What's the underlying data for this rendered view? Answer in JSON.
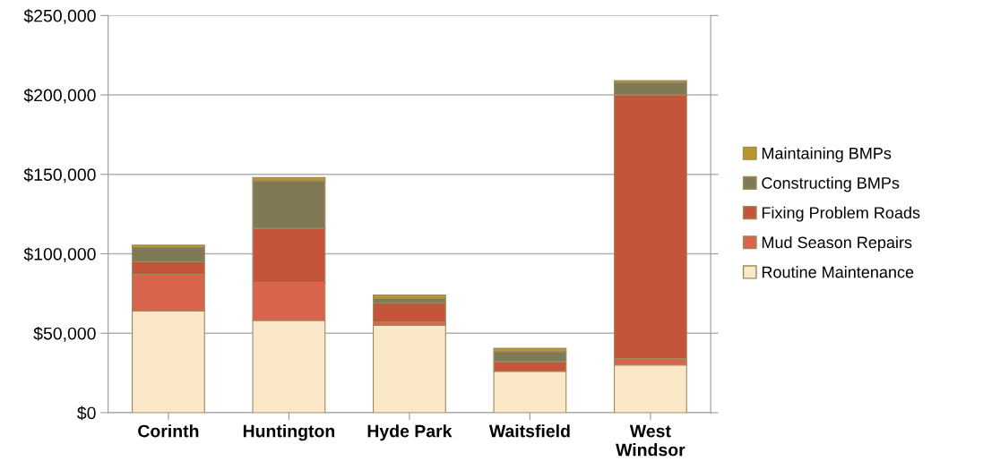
{
  "chart_data": {
    "type": "bar",
    "stacked": true,
    "categories": [
      "Corinth",
      "Huntington",
      "Hyde Park",
      "Waitsfield",
      "West\nWindsor"
    ],
    "series": [
      {
        "name": "Routine Maintenance",
        "color": "#fae8c8",
        "values": [
          64000,
          58000,
          55000,
          26000,
          30000
        ]
      },
      {
        "name": "Mud Season Repairs",
        "color": "#d9644e",
        "values": [
          23000,
          24000,
          2000,
          0,
          4000
        ]
      },
      {
        "name": "Fixing Problem Roads",
        "color": "#c4553a",
        "values": [
          8000,
          34000,
          12000,
          6000,
          166000
        ]
      },
      {
        "name": "Constructing BMPs",
        "color": "#7f7a55",
        "values": [
          9000,
          30000,
          3000,
          6500,
          8000
        ]
      },
      {
        "name": "Maintaining BMPs",
        "color": "#b8962e",
        "values": [
          1500,
          2000,
          2000,
          2000,
          1000
        ]
      }
    ],
    "ylim": [
      0,
      250000
    ],
    "yticks": [
      {
        "value": 0,
        "label": "$0"
      },
      {
        "value": 50000,
        "label": "$50,000"
      },
      {
        "value": 100000,
        "label": "$100,000"
      },
      {
        "value": 150000,
        "label": "$150,000"
      },
      {
        "value": 200000,
        "label": "$200,000"
      },
      {
        "value": 250000,
        "label": "$250,000"
      }
    ],
    "grid": "y",
    "legend": "right"
  }
}
